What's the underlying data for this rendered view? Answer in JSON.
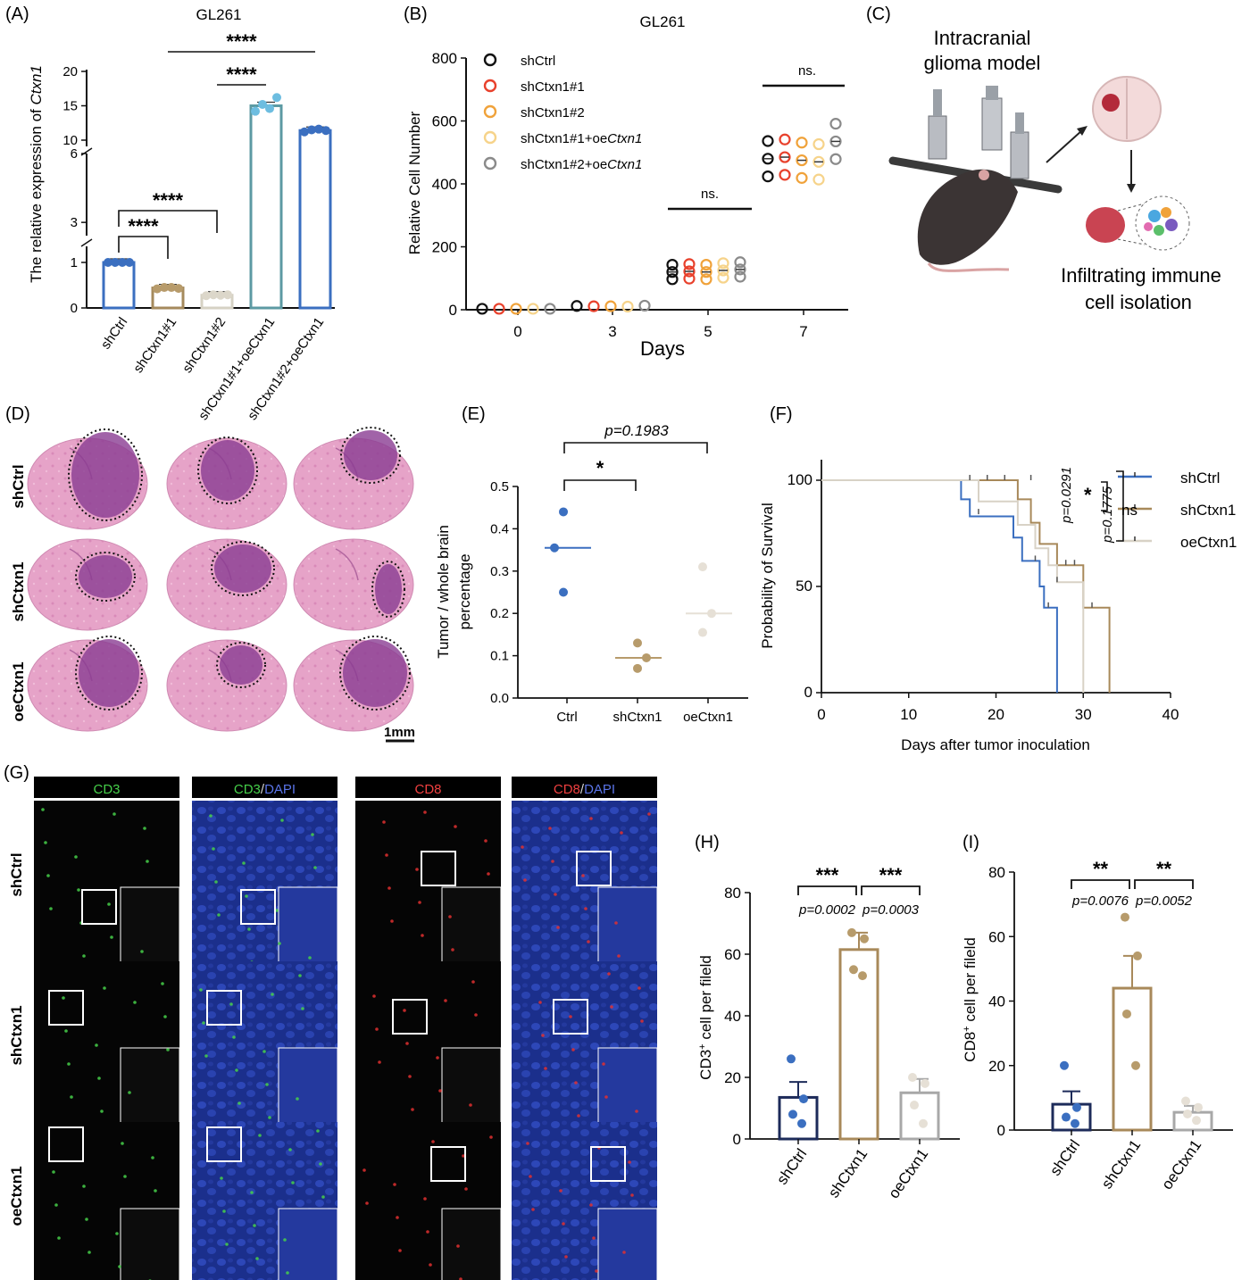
{
  "panels": {
    "A": {
      "label": "(A)",
      "chart_data": {
        "type": "bar",
        "title": "GL261",
        "ylabel_prefix": "The relative expression of",
        "ylabel_gene": "Ctxn1",
        "ytick_labels": [
          "0",
          "1",
          "3",
          "6",
          "10",
          "15",
          "20"
        ],
        "categories": [
          "shCtrl",
          "shCtxn1#1",
          "shCtxn1#2",
          "shCtxn1#1+oeCtxn1",
          "shCtxn1#2+oeCtxn1"
        ],
        "values": [
          1.0,
          0.44,
          0.28,
          15.0,
          11.4
        ],
        "points": [
          [
            1.0,
            1.0,
            1.0,
            1.0
          ],
          [
            0.42,
            0.45,
            0.45,
            0.43
          ],
          [
            0.27,
            0.29,
            0.28,
            0.29
          ],
          [
            14.2,
            15.2,
            14.6,
            16.2
          ],
          [
            11.2,
            11.5,
            11.6,
            11.4
          ]
        ],
        "colors": [
          "#3b6fc0",
          "#a58a5c",
          "#d6d2c4",
          "#5c9aa3",
          "#3b6fc0"
        ],
        "point_colors": [
          "#3b6fc0",
          "#b79b6b",
          "#dcd7ca",
          "#6dbde0",
          "#3b6fc0"
        ],
        "significance": [
          "****",
          "****",
          "****",
          "****"
        ]
      }
    },
    "B": {
      "label": "(B)",
      "chart_data": {
        "type": "scatter",
        "title": "GL261",
        "xlabel": "Days",
        "ylabel": "Relative Cell Number",
        "x_ticks": [
          "0",
          "3",
          "5",
          "7"
        ],
        "y_ticks": [
          "0",
          "200",
          "400",
          "600",
          "800"
        ],
        "ylim": [
          0,
          800
        ],
        "series": [
          {
            "name": "shCtrl",
            "color": "#111111",
            "values": [
              3,
              12,
              120,
              480
            ]
          },
          {
            "name": "shCtxn1#1",
            "color": "#e8412c",
            "values": [
              3,
              11,
              122,
              485
            ]
          },
          {
            "name": "shCtxn1#2",
            "color": "#f0a23a",
            "values": [
              3,
              11,
              120,
              475
            ]
          },
          {
            "name": "shCtxn1#1+oeCtxn1",
            "color": "#f6d38a",
            "values": [
              3,
              10,
              125,
              470
            ]
          },
          {
            "name": "shCtxn1#2+oeCtxn1",
            "color": "#8a8a8a",
            "values": [
              3,
              13,
              128,
              535
            ]
          }
        ],
        "legend_names": [
          "shCtrl",
          "shCtxn1#1",
          "shCtxn1#2",
          "shCtxn1#1+oe",
          "shCtxn1#2+oe"
        ],
        "legend_gene": "Ctxn1",
        "significance": [
          "ns.",
          "ns."
        ]
      }
    },
    "C": {
      "label": "(C)",
      "title_line1": "Intracranial",
      "title_line2": "glioma model",
      "caption_line1": "Infiltrating immune",
      "caption_line2": "cell isolation"
    },
    "D": {
      "label": "(D)",
      "rows": [
        "shCtrl",
        "shCtxn1",
        "oeCtxn1"
      ],
      "scale_bar": "1mm"
    },
    "E": {
      "label": "(E)",
      "chart_data": {
        "type": "scatter",
        "ylabel_line1": "Tumor / whole brain",
        "ylabel_line2": "percentage",
        "categories": [
          "Ctrl",
          "shCtxn1",
          "oeCtxn1"
        ],
        "y_ticks": [
          "0.0",
          "0.1",
          "0.2",
          "0.3",
          "0.4",
          "0.5"
        ],
        "ylim": [
          0,
          0.5
        ],
        "points": [
          [
            0.44,
            0.355,
            0.25
          ],
          [
            0.13,
            0.095,
            0.07
          ],
          [
            0.31,
            0.2,
            0.155
          ]
        ],
        "means": [
          0.355,
          0.095,
          0.2
        ],
        "colors": [
          "#3b6fc0",
          "#b79b6b",
          "#e6e0d6"
        ],
        "significance_star": "*",
        "p_value": "p=0.1983"
      }
    },
    "F": {
      "label": "(F)",
      "chart_data": {
        "type": "line",
        "xlabel": "Days after tumor inoculation",
        "ylabel": "Probability of Survival",
        "x_ticks": [
          "0",
          "10",
          "20",
          "30",
          "40"
        ],
        "y_ticks": [
          "0",
          "50",
          "100"
        ],
        "xlim": [
          0,
          40
        ],
        "ylim": [
          0,
          100
        ],
        "series": [
          {
            "name": "shCtrl",
            "color": "#3b6fc0",
            "steps": [
              [
                0,
                100
              ],
              [
                16,
                100
              ],
              [
                16,
                91
              ],
              [
                17,
                91
              ],
              [
                17,
                83
              ],
              [
                22,
                83
              ],
              [
                22,
                73
              ],
              [
                23,
                73
              ],
              [
                23,
                62
              ],
              [
                25,
                62
              ],
              [
                25,
                50
              ],
              [
                25.5,
                50
              ],
              [
                25.5,
                40
              ],
              [
                27,
                40
              ],
              [
                27,
                0
              ]
            ]
          },
          {
            "name": "shCtxn1",
            "color": "#a8895a",
            "steps": [
              [
                0,
                100
              ],
              [
                22.5,
                100
              ],
              [
                22.5,
                91
              ],
              [
                24,
                91
              ],
              [
                24,
                80
              ],
              [
                25,
                80
              ],
              [
                25,
                70
              ],
              [
                27,
                70
              ],
              [
                27,
                60
              ],
              [
                30,
                60
              ],
              [
                30,
                40
              ],
              [
                33,
                40
              ],
              [
                33,
                0
              ]
            ]
          },
          {
            "name": "oeCtxn1",
            "color": "#d8d2c6",
            "steps": [
              [
                0,
                100
              ],
              [
                18,
                100
              ],
              [
                18,
                90
              ],
              [
                22.5,
                90
              ],
              [
                22.5,
                79
              ],
              [
                24.5,
                79
              ],
              [
                24.5,
                68
              ],
              [
                26,
                68
              ],
              [
                26,
                60
              ],
              [
                27,
                60
              ],
              [
                27,
                52
              ],
              [
                30,
                52
              ],
              [
                30,
                0
              ]
            ]
          }
        ],
        "p_values": [
          "p=0.0291",
          "p=0.1775"
        ],
        "significance": [
          "*",
          "ns"
        ]
      }
    },
    "G": {
      "label": "(G)",
      "columns": [
        {
          "parts": [
            {
              "text": "CD3",
              "color": "#46d04a"
            }
          ]
        },
        {
          "parts": [
            {
              "text": "CD3",
              "color": "#46d04a"
            },
            {
              "text": "/",
              "color": "#d8d8d8"
            },
            {
              "text": "DAPI",
              "color": "#5a74e8"
            }
          ]
        },
        {
          "parts": [
            {
              "text": "CD8",
              "color": "#f04040"
            }
          ]
        },
        {
          "parts": [
            {
              "text": "CD8",
              "color": "#f04040"
            },
            {
              "text": "/",
              "color": "#d8d8d8"
            },
            {
              "text": "DAPI",
              "color": "#5a74e8"
            }
          ]
        }
      ],
      "rows": [
        "shCtrl",
        "shCtxn1",
        "oeCtxn1"
      ]
    },
    "H": {
      "label": "(H)",
      "chart_data": {
        "type": "bar",
        "ylabel_pre": "CD3",
        "ylabel_post": " cell per fileld",
        "categories": [
          "shCtrl",
          "shCtxn1",
          "oeCtxn1"
        ],
        "y_ticks": [
          "0",
          "20",
          "40",
          "60",
          "80"
        ],
        "ylim": [
          0,
          80
        ],
        "values": [
          13.5,
          61.5,
          15.0
        ],
        "errors": [
          5.0,
          5.5,
          4.5
        ],
        "points": [
          [
            26,
            13,
            8,
            5
          ],
          [
            67,
            65,
            55,
            53
          ],
          [
            20,
            18,
            11,
            5
          ]
        ],
        "colors": [
          "#1d2b5a",
          "#a8895a",
          "#a8a8a8"
        ],
        "point_colors": [
          "#3b6fc0",
          "#b79b6b",
          "#e6e0d6"
        ],
        "significance": [
          "***",
          "***"
        ],
        "p_values": [
          "p=0.0002",
          "p=0.0003"
        ]
      }
    },
    "I": {
      "label": "(I)",
      "chart_data": {
        "type": "bar",
        "ylabel_pre": "CD8",
        "ylabel_post": " cell per fileld",
        "categories": [
          "shCtrl",
          "shCtxn1",
          "oeCtxn1"
        ],
        "y_ticks": [
          "0",
          "20",
          "40",
          "60",
          "80"
        ],
        "ylim": [
          0,
          80
        ],
        "values": [
          8.0,
          44.0,
          5.5
        ],
        "errors": [
          4.0,
          10.0,
          2.0
        ],
        "points": [
          [
            20,
            7,
            4,
            2
          ],
          [
            66,
            54,
            36,
            20
          ],
          [
            9,
            7,
            5,
            3
          ]
        ],
        "colors": [
          "#1d2b5a",
          "#a8895a",
          "#a8a8a8"
        ],
        "point_colors": [
          "#3b6fc0",
          "#b79b6b",
          "#e6e0d6"
        ],
        "significance": [
          "**",
          "**"
        ],
        "p_values": [
          "p=0.0076",
          "p=0.0052"
        ]
      }
    }
  }
}
